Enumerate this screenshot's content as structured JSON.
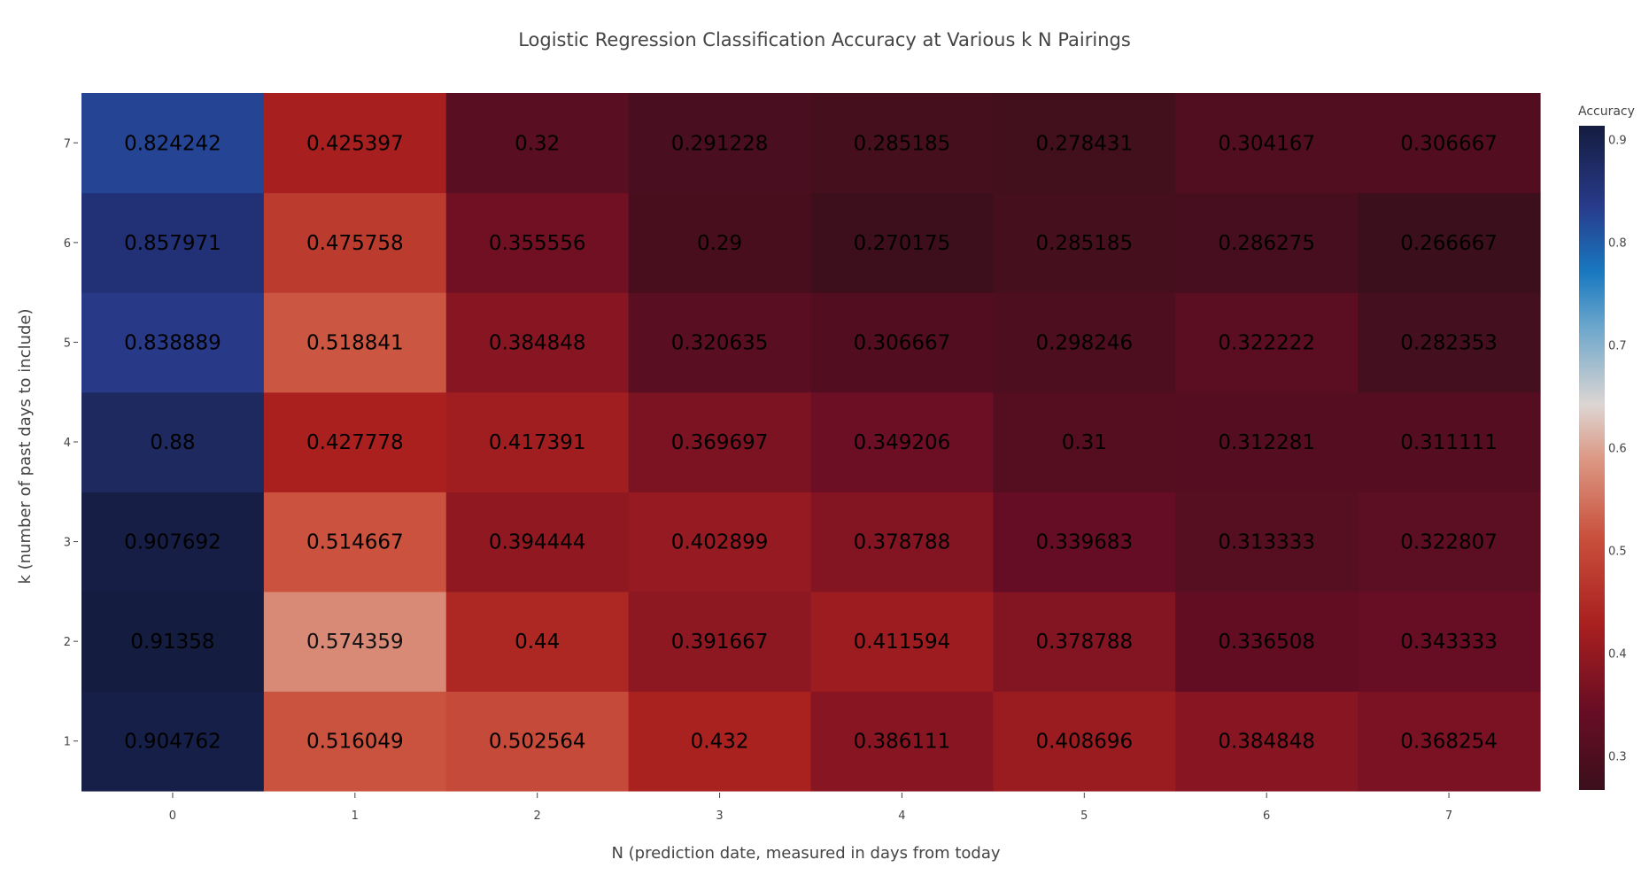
{
  "chart_data": {
    "type": "heatmap",
    "title": "Logistic Regression Classification Accuracy at Various k N Pairings",
    "xlabel": "N (prediction date, measured in days from today",
    "ylabel": "k (number of past days to include)",
    "x": [
      "0",
      "1",
      "2",
      "3",
      "4",
      "5",
      "6",
      "7"
    ],
    "y": [
      "1",
      "2",
      "3",
      "4",
      "5",
      "6",
      "7"
    ],
    "z": [
      [
        "0.904762",
        "0.516049",
        "0.502564",
        "0.432",
        "0.386111",
        "0.408696",
        "0.384848",
        "0.368254"
      ],
      [
        "0.91358",
        "0.574359",
        "0.44",
        "0.391667",
        "0.411594",
        "0.378788",
        "0.336508",
        "0.343333"
      ],
      [
        "0.907692",
        "0.514667",
        "0.394444",
        "0.402899",
        "0.378788",
        "0.339683",
        "0.313333",
        "0.322807"
      ],
      [
        "0.88",
        "0.427778",
        "0.417391",
        "0.369697",
        "0.349206",
        "0.31",
        "0.312281",
        "0.311111"
      ],
      [
        "0.838889",
        "0.518841",
        "0.384848",
        "0.320635",
        "0.306667",
        "0.298246",
        "0.322222",
        "0.282353"
      ],
      [
        "0.857971",
        "0.475758",
        "0.355556",
        "0.29",
        "0.270175",
        "0.285185",
        "0.286275",
        "0.266667"
      ],
      [
        "0.824242",
        "0.425397",
        "0.32",
        "0.291228",
        "0.285185",
        "0.278431",
        "0.304167",
        "0.306667"
      ]
    ],
    "zmin": 0.266667,
    "zmax": 0.91358,
    "colorscale": [
      [
        0.0,
        "#3b0f1c"
      ],
      [
        0.12,
        "#680d24"
      ],
      [
        0.25,
        "#a9201f"
      ],
      [
        0.38,
        "#c9503c"
      ],
      [
        0.5,
        "#dc9985"
      ],
      [
        0.58,
        "#ddd6d3"
      ],
      [
        0.7,
        "#68a5cb"
      ],
      [
        0.78,
        "#1878c0"
      ],
      [
        0.88,
        "#283a8a"
      ],
      [
        1.0,
        "#141c3f"
      ]
    ],
    "colorbar": {
      "title": "Accuracy",
      "ticks": [
        "0.3",
        "0.4",
        "0.5",
        "0.6",
        "0.7",
        "0.8",
        "0.9"
      ]
    },
    "legend": "colorbar-right",
    "grid": false
  }
}
